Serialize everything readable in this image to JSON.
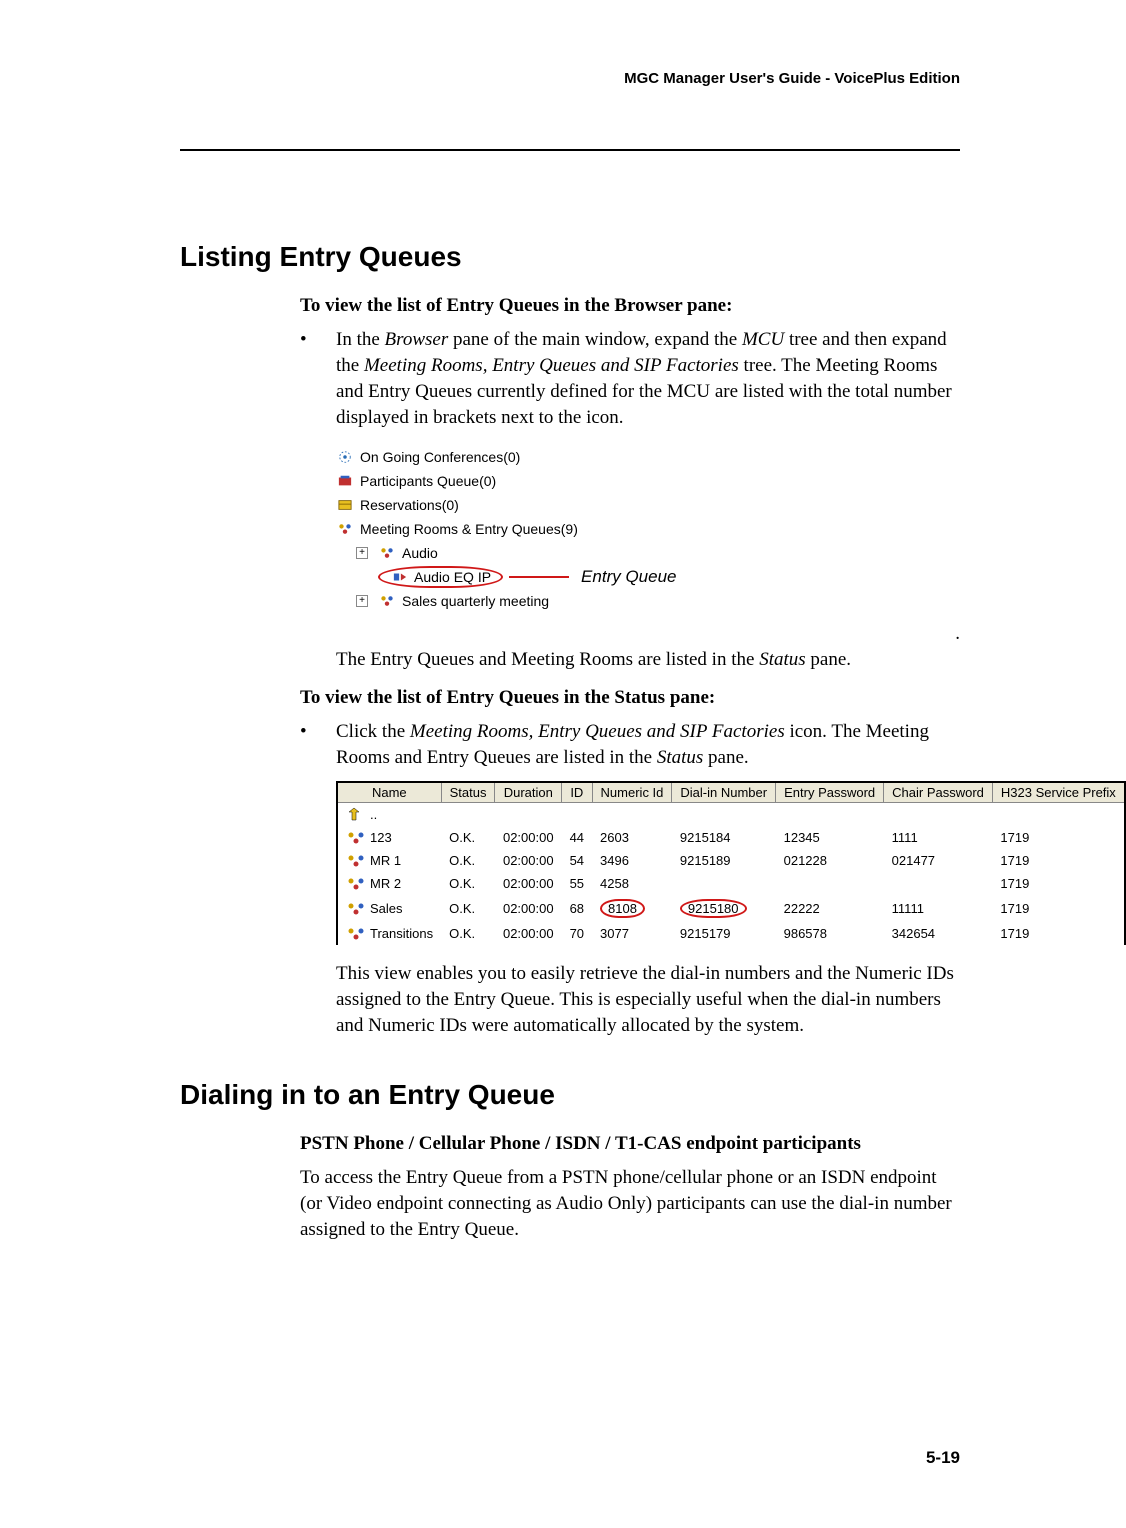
{
  "header": "MGC Manager User's Guide - VoicePlus Edition",
  "section1": {
    "title": "Listing Entry Queues",
    "sub1": "To view the list of Entry Queues in the Browser pane:",
    "bullet1_pre": "In the ",
    "bullet1_it1": "Browser",
    "bullet1_mid": " pane of the main window, expand the ",
    "bullet1_it2": "MCU",
    "bullet1_mid2": " tree and then expand the ",
    "bullet1_it3": "Meeting Rooms, Entry Queues and SIP Factories",
    "bullet1_post": " tree. The Meeting Rooms and Entry Queues currently defined for the MCU are listed with the total number displayed in brackets next to the icon."
  },
  "tree": {
    "t1": "On Going Conferences(0)",
    "t2": "Participants Queue(0)",
    "t3": "Reservations(0)",
    "t4": "Meeting Rooms & Entry Queues(9)",
    "t5": "Audio",
    "t6": "Audio EQ IP",
    "t7": "Sales quarterly meeting",
    "eq_label": "Entry Queue"
  },
  "after_tree": {
    "line_pre": "The Entry Queues and Meeting Rooms are listed in the ",
    "line_it": "Status",
    "line_post": " pane."
  },
  "sub2": "To view the list of Entry Queues in the Status pane:",
  "bullet2": {
    "pre": "Click the ",
    "it": "Meeting Rooms, Entry Queues and SIP Factories",
    "mid": " icon. The Meeting Rooms and Entry Queues are listed in the ",
    "it2": "Status",
    "post": " pane."
  },
  "table": {
    "columns": [
      "Name",
      "Status",
      "Duration",
      "ID",
      "Numeric Id",
      "Dial-in Number",
      "Entry Password",
      "Chair Password",
      "H323 Service Prefix"
    ],
    "rows": [
      {
        "name": "..",
        "status": "",
        "duration": "",
        "id": "",
        "numeric": "",
        "dialin": "",
        "entry": "",
        "chair": "",
        "h323": "",
        "up": true
      },
      {
        "name": "123",
        "status": "O.K.",
        "duration": "02:00:00",
        "id": "44",
        "numeric": "2603",
        "dialin": "9215184",
        "entry": "12345",
        "chair": "1111",
        "h323": "1719"
      },
      {
        "name": "MR 1",
        "status": "O.K.",
        "duration": "02:00:00",
        "id": "54",
        "numeric": "3496",
        "dialin": "9215189",
        "entry": "021228",
        "chair": "021477",
        "h323": "1719"
      },
      {
        "name": "MR 2",
        "status": "O.K.",
        "duration": "02:00:00",
        "id": "55",
        "numeric": "4258",
        "dialin": "",
        "entry": "",
        "chair": "",
        "h323": "1719"
      },
      {
        "name": "Sales",
        "status": "O.K.",
        "duration": "02:00:00",
        "id": "68",
        "numeric": "8108",
        "dialin": "9215180",
        "entry": "22222",
        "chair": "11111",
        "h323": "1719",
        "circle": true
      },
      {
        "name": "Transitions",
        "status": "O.K.",
        "duration": "02:00:00",
        "id": "70",
        "numeric": "3077",
        "dialin": "9215179",
        "entry": "986578",
        "chair": "342654",
        "h323": "1719"
      }
    ]
  },
  "para_after_table": "This view enables you to easily retrieve the dial-in numbers and the Numeric IDs assigned to the Entry Queue. This is especially useful when the dial-in numbers and Numeric IDs were automatically allocated by the system.",
  "section2": {
    "title": "Dialing in to an Entry Queue",
    "sub": "PSTN Phone / Cellular Phone / ISDN / T1-CAS endpoint participants",
    "body": "To access the Entry Queue from a PSTN phone/cellular phone or an ISDN endpoint (or Video endpoint connecting as Audio Only) participants can use the dial-in number assigned to the Entry Queue."
  },
  "page_num": "5-19",
  "icons": {
    "dots_color": "#2a6db5",
    "people_colors": [
      "#d0a000",
      "#3060c0",
      "#c03030"
    ],
    "red": "#d01818",
    "header_bg": "#ece9d8"
  }
}
